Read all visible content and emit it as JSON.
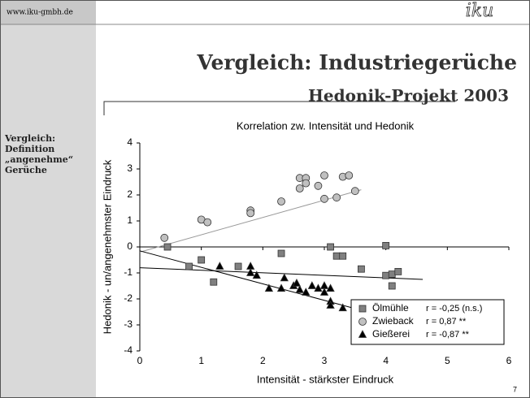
{
  "slide": {
    "url": "www.iku-gmbh.de",
    "logo": "iku",
    "title": "Vergleich: Industriegerüche",
    "subtitle": "Hedonik-Projekt 2003",
    "sidebar": [
      "Vergleich:",
      "Definition",
      "„angenehme“",
      "Gerüche"
    ],
    "page": "7"
  },
  "chart_data": {
    "type": "scatter",
    "title": "Korrelation zw. Intensität und Hedonik",
    "x_label": "Intensität - stärkster Eindruck",
    "y_label": "Hedonik - un/angenehmster Eindruck",
    "xlim": [
      0,
      6
    ],
    "xticks": [
      0,
      1,
      2,
      3,
      4,
      5,
      6
    ],
    "ylim": [
      -4,
      4
    ],
    "yticks": [
      -4,
      -3,
      -2,
      -1,
      0,
      1,
      2,
      3,
      4
    ],
    "legend": "lower right",
    "series": [
      {
        "name": "Ölmühle",
        "r_label": "r = -0,25 (n.s.)",
        "color": "#808080",
        "marker": "square",
        "x": [
          0.45,
          0.8,
          1.0,
          1.2,
          1.6,
          2.3,
          3.1,
          3.2,
          3.3,
          3.6,
          4.0,
          4.0,
          4.1,
          4.1,
          4.2
        ],
        "values": [
          0,
          -0.75,
          -0.5,
          -1.35,
          -0.75,
          -0.25,
          0,
          -0.35,
          -0.35,
          -0.85,
          0.05,
          -1.1,
          -1.05,
          -1.5,
          -0.95
        ],
        "trend": {
          "x": [
            0,
            4.6
          ],
          "y": [
            -0.8,
            -1.25
          ],
          "color": "#000000"
        }
      },
      {
        "name": "Zwieback",
        "r_label": "r =  0,87 **",
        "color": "#c0c0c0",
        "marker": "circle",
        "x": [
          0.4,
          1.0,
          1.1,
          1.8,
          1.8,
          2.3,
          2.6,
          2.6,
          2.7,
          2.7,
          2.9,
          3.0,
          3.0,
          3.2,
          3.3,
          3.4,
          3.5
        ],
        "values": [
          0.35,
          1.05,
          0.95,
          1.4,
          1.3,
          1.75,
          2.65,
          2.25,
          2.65,
          2.45,
          2.35,
          2.75,
          1.85,
          1.9,
          2.7,
          2.75,
          2.15
        ],
        "trend": {
          "x": [
            0,
            3.6
          ],
          "y": [
            -0.2,
            2.2
          ],
          "color": "#999999"
        }
      },
      {
        "name": "Gießerei",
        "r_label": "r = -0,87 **",
        "color": "#000000",
        "marker": "triangle",
        "x": [
          1.3,
          1.8,
          1.8,
          1.9,
          2.1,
          2.3,
          2.35,
          2.5,
          2.55,
          2.6,
          2.7,
          2.8,
          2.9,
          3.0,
          3.0,
          3.1,
          3.1,
          3.1,
          3.3
        ],
        "values": [
          -0.75,
          -0.75,
          -1.0,
          -1.1,
          -1.6,
          -1.6,
          -1.2,
          -1.5,
          -1.4,
          -1.65,
          -1.75,
          -1.5,
          -1.6,
          -1.5,
          -1.75,
          -1.6,
          -2.1,
          -2.25,
          -2.35
        ],
        "trend": {
          "x": [
            0,
            3.7
          ],
          "y": [
            -0.15,
            -2.5
          ],
          "color": "#000000"
        }
      }
    ]
  }
}
